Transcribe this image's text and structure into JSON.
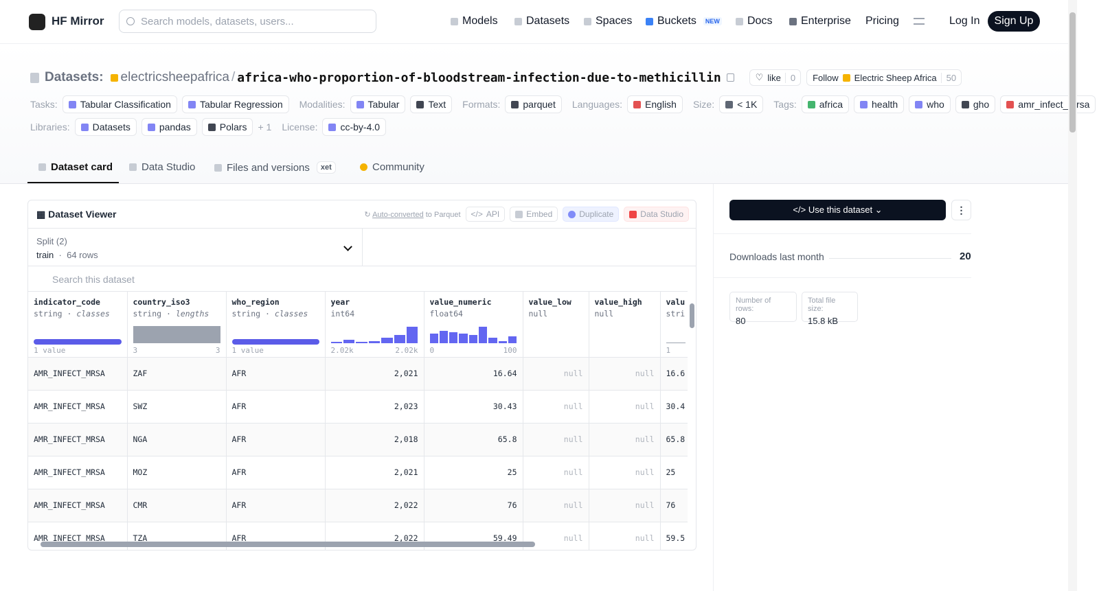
{
  "nav": {
    "brand": "HF Mirror",
    "search_placeholder": "Search models, datasets, users...",
    "links": [
      "Models",
      "Datasets",
      "Spaces",
      "Buckets",
      "Docs",
      "Enterprise",
      "Pricing"
    ],
    "badge": "NEW",
    "login": "Log In",
    "signup": "Sign Up"
  },
  "header": {
    "section": "Datasets:",
    "owner": "electricsheepafrica",
    "separator": "/",
    "name": "africa-who-proportion-of-bloodstream-infection-due-to-methicillin",
    "like": "like",
    "likes": 0,
    "follow": "Follow",
    "org": "Electric Sheep Africa",
    "followers": 50
  },
  "tag_rows": [
    [
      {
        "label": "Tasks:",
        "items": [
          "Tabular Classification",
          "Tabular Regression"
        ]
      },
      {
        "label": "Modalities:",
        "items": [
          "Tabular",
          "Text"
        ]
      },
      {
        "label": "Formats:",
        "items": [
          "parquet"
        ]
      },
      {
        "label": "Languages:",
        "items": [
          "English"
        ]
      },
      {
        "label": "Size:",
        "items": [
          "< 1K"
        ]
      },
      {
        "label": "Tags:",
        "items": [
          "africa",
          "health",
          "who",
          "gho",
          "amr_infect_mrsa"
        ]
      }
    ],
    [
      {
        "label": "Libraries:",
        "items": [
          "Datasets",
          "pandas",
          "Polars"
        ],
        "more": "+ 1"
      },
      {
        "label": "License:",
        "items": [
          "cc-by-4.0"
        ]
      }
    ]
  ],
  "tabs": [
    "Dataset card",
    "Data Studio",
    "Files and versions",
    "Community"
  ],
  "xet": "xet",
  "viewer": {
    "title": "Dataset Viewer",
    "auto": "Auto-converted",
    "to_parquet": "to Parquet",
    "buttons": [
      "API",
      "Embed",
      "Duplicate",
      "Data Studio"
    ],
    "split_label": "Split (2)",
    "split": "train",
    "split_rows": "64 rows",
    "search": "Search this dataset",
    "columns": [
      {
        "name": "indicator_code",
        "type": "string",
        "kind": "classes",
        "min": "1 value"
      },
      {
        "name": "country_iso3",
        "type": "string",
        "kind": "lengths",
        "min": 3,
        "max": 3
      },
      {
        "name": "who_region",
        "type": "string",
        "kind": "classes",
        "min": "1 value"
      },
      {
        "name": "year",
        "type": "int64",
        "min": "2.02k",
        "max": "2.02k"
      },
      {
        "name": "value_numeric",
        "type": "float64",
        "min": 0,
        "max": 100
      },
      {
        "name": "value_low",
        "type": "null"
      },
      {
        "name": "value_high",
        "type": "null"
      },
      {
        "name": "valu",
        "type": "stri",
        "min": 1
      }
    ],
    "rows": [
      [
        "AMR_INFECT_MRSA",
        "ZAF",
        "AFR",
        "2,021",
        "16.64",
        "null",
        "null",
        "16.6"
      ],
      [
        "AMR_INFECT_MRSA",
        "SWZ",
        "AFR",
        "2,023",
        "30.43",
        "null",
        "null",
        "30.4"
      ],
      [
        "AMR_INFECT_MRSA",
        "NGA",
        "AFR",
        "2,018",
        "65.8",
        "null",
        "null",
        "65.8"
      ],
      [
        "AMR_INFECT_MRSA",
        "MOZ",
        "AFR",
        "2,021",
        "25",
        "null",
        "null",
        "25"
      ],
      [
        "AMR_INFECT_MRSA",
        "CMR",
        "AFR",
        "2,022",
        "76",
        "null",
        "null",
        "76"
      ],
      [
        "AMR_INFECT_MRSA",
        "TZA",
        "AFR",
        "2,022",
        "59.49",
        "null",
        "null",
        "59.5"
      ]
    ]
  },
  "sidebar": {
    "use": "Use this dataset",
    "downloads_label": "Downloads last month",
    "downloads": 20,
    "rows_label": "Number of rows:",
    "rows": 80,
    "size_label": "Total file size:",
    "size": "15.8 kB"
  }
}
